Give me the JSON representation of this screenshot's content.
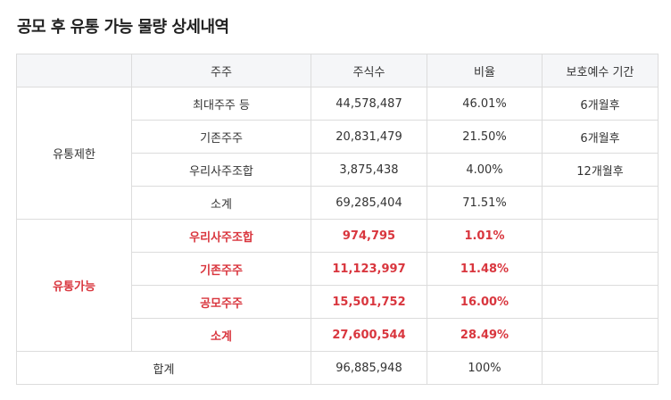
{
  "title": "공모 후 유통 가능 물량 상세내역",
  "header": {
    "col0": "",
    "holder": "주주",
    "shares": "주식수",
    "ratio": "비율",
    "lockup": "보호예수 기간"
  },
  "restricted": {
    "label": "유통제한",
    "rows": [
      {
        "holder": "최대주주 등",
        "shares": "44,578,487",
        "ratio": "46.01%",
        "lockup": "6개월후"
      },
      {
        "holder": "기존주주",
        "shares": "20,831,479",
        "ratio": "21.50%",
        "lockup": "6개월후"
      },
      {
        "holder": "우리사주조합",
        "shares": "3,875,438",
        "ratio": "4.00%",
        "lockup": "12개월후"
      },
      {
        "holder": "소계",
        "shares": "69,285,404",
        "ratio": "71.51%",
        "lockup": ""
      }
    ]
  },
  "available": {
    "label": "유통가능",
    "rows": [
      {
        "holder": "우리사주조합",
        "shares": "974,795",
        "ratio": "1.01%",
        "lockup": ""
      },
      {
        "holder": "기존주주",
        "shares": "11,123,997",
        "ratio": "11.48%",
        "lockup": ""
      },
      {
        "holder": "공모주주",
        "shares": "15,501,752",
        "ratio": "16.00%",
        "lockup": ""
      },
      {
        "holder": "소계",
        "shares": "27,600,544",
        "ratio": "28.49%",
        "lockup": ""
      }
    ]
  },
  "total": {
    "label": "합계",
    "shares": "96,885,948",
    "ratio": "100%",
    "lockup": ""
  },
  "colors": {
    "accent_red": "#d9363e",
    "header_bg": "#f5f6f8",
    "border": "#dcdcdc"
  }
}
